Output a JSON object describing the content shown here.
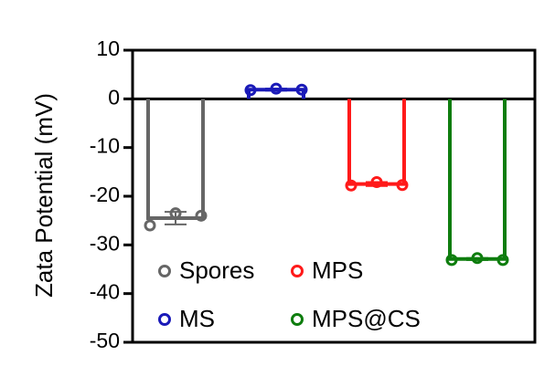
{
  "chart_data": {
    "type": "bar",
    "y_label": "Zata Potential (mV)",
    "ylim": [
      -50,
      10
    ],
    "yticks": [
      -50,
      -40,
      -30,
      -20,
      -10,
      0,
      10
    ],
    "series": [
      {
        "name": "Spores",
        "color": "#666666",
        "values": [
          -24.5
        ],
        "errors": [
          1.3
        ],
        "points": [
          -26,
          -23.5,
          -24
        ]
      },
      {
        "name": "MS",
        "color": "#1a1ab8",
        "values": [
          1.9
        ],
        "errors": [
          0.2
        ],
        "points": [
          1.8,
          2.1,
          1.9
        ]
      },
      {
        "name": "MPS",
        "color": "#ff1a1a",
        "values": [
          -17.5
        ],
        "errors": [
          0.4
        ],
        "points": [
          -17.8,
          -17.1,
          -17.7
        ]
      },
      {
        "name": "MPS@CS",
        "color": "#0e7d0e",
        "values": [
          -32.9
        ],
        "errors": [
          0.2
        ],
        "points": [
          -33.1,
          -32.7,
          -33.1
        ]
      }
    ]
  }
}
